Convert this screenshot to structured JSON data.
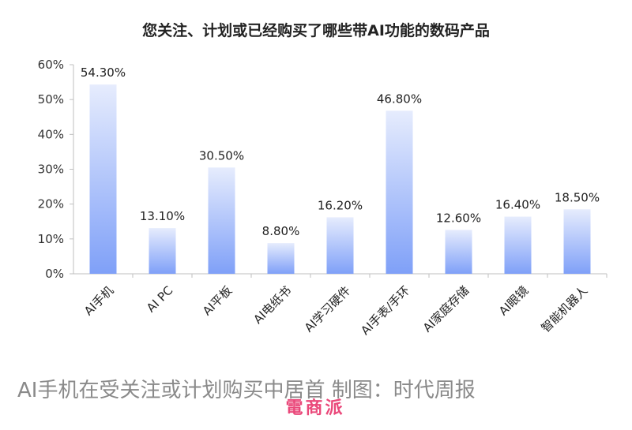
{
  "chart_data": {
    "type": "bar",
    "title": "您关注、计划或已经购买了哪些带AI功能的数码产品",
    "xlabel": "",
    "ylabel": "",
    "categories": [
      "AI手机",
      "AI PC",
      "AI平板",
      "AI电纸书",
      "AI学习硬件",
      "AI手表/手环",
      "AI家庭存储",
      "AI眼镜",
      "智能机器人"
    ],
    "values": [
      54.3,
      13.1,
      30.5,
      8.8,
      16.2,
      46.8,
      12.6,
      16.4,
      18.5
    ],
    "data_labels": [
      "54.30%",
      "13.10%",
      "30.50%",
      "8.80%",
      "16.20%",
      "46.80%",
      "12.60%",
      "16.40%",
      "18.50%"
    ],
    "ylim": [
      0,
      60
    ],
    "yticks": [
      0,
      10,
      20,
      30,
      40,
      50,
      60
    ],
    "ytick_labels": [
      "0%",
      "10%",
      "20%",
      "30%",
      "40%",
      "50%",
      "60%"
    ],
    "grid": false,
    "bar_color_top": "#e6ecfd",
    "bar_color_bottom": "#7fa0f8"
  },
  "caption": "AI手机在受关注或计划购买中居首  制图：时代周报",
  "watermark": "電商派"
}
